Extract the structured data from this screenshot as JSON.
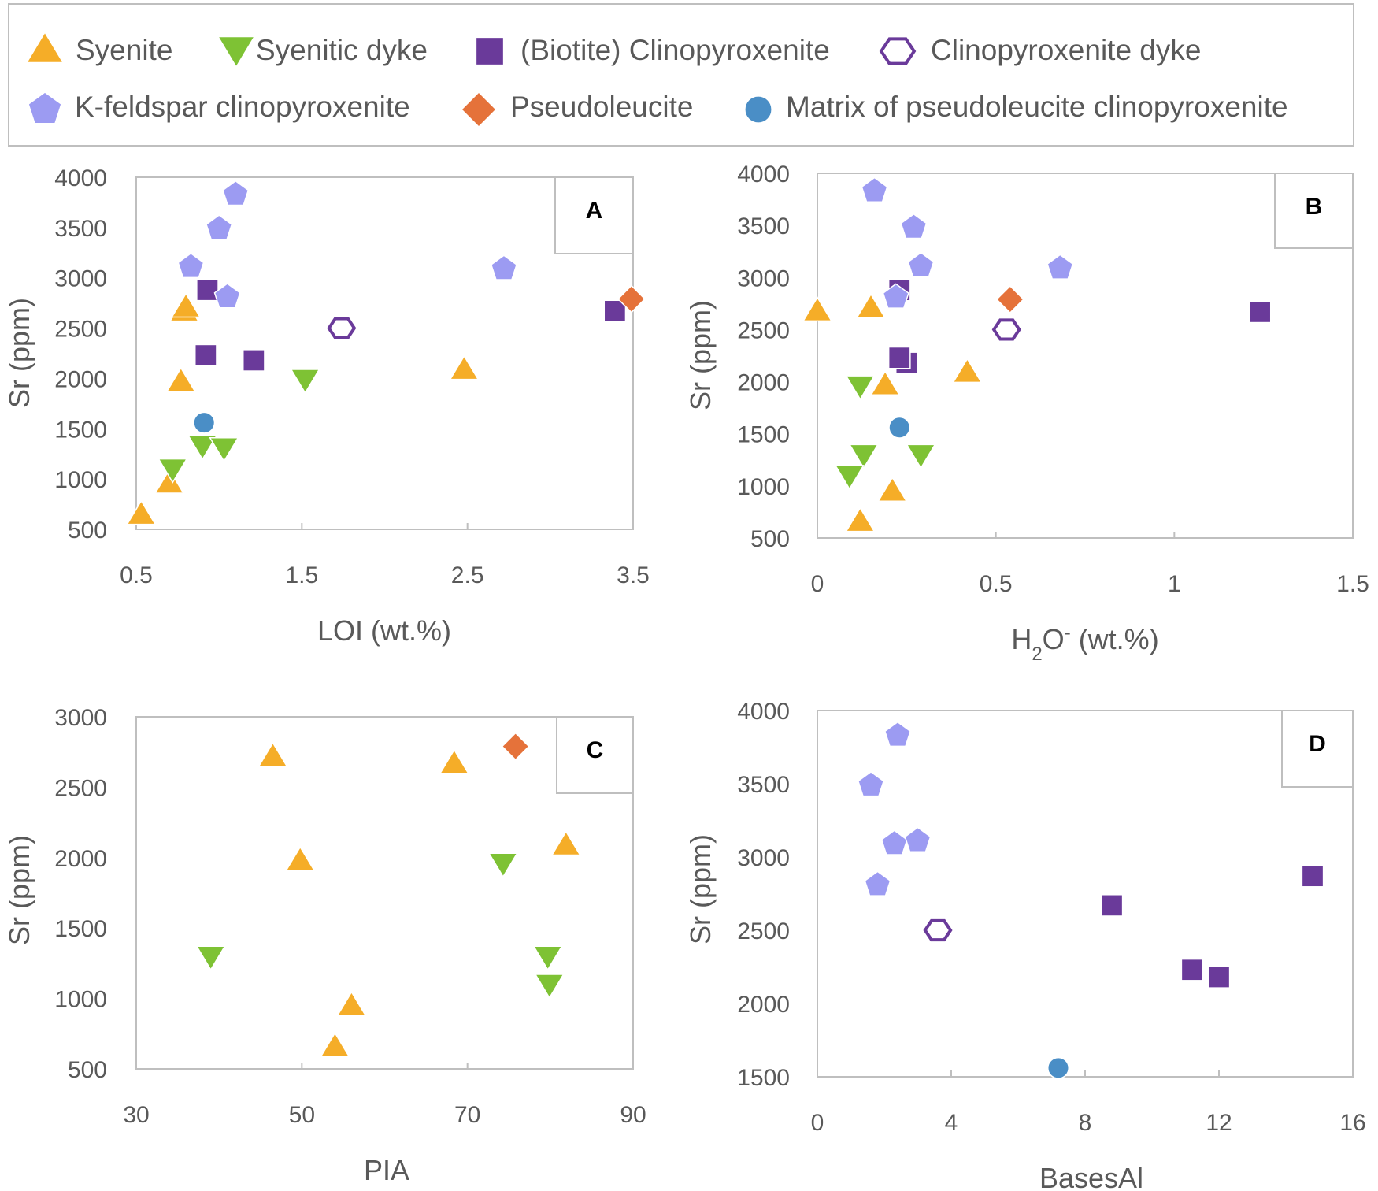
{
  "figure": {
    "background": "#ffffff"
  },
  "legend": [
    {
      "key": "syenite",
      "label": "Syenite",
      "marker": "triangle-up",
      "color": "#F5AD28",
      "filled": true
    },
    {
      "key": "dyke",
      "label": "Syenitic dyke",
      "marker": "triangle-down",
      "color": "#7EC234",
      "filled": true
    },
    {
      "key": "cpx",
      "label": "(Biotite) Clinopyroxenite",
      "marker": "square",
      "color": "#6A3A9A",
      "filled": true
    },
    {
      "key": "cpxdyke",
      "label": "Clinopyroxenite dyke",
      "marker": "hexagon",
      "color": "#6A3A9A",
      "filled": false
    },
    {
      "key": "kfsp",
      "label": "K-feldspar clinopyroxenite",
      "marker": "pentagon",
      "color": "#9C9BF2",
      "filled": true
    },
    {
      "key": "pseudo",
      "label": "Pseudoleucite",
      "marker": "diamond",
      "color": "#E5723A",
      "filled": true
    },
    {
      "key": "matrix",
      "label": "Matrix of pseudoleucite clinopyroxenite",
      "marker": "circle",
      "color": "#4A8EC6",
      "filled": true
    }
  ],
  "chart_data": [
    {
      "panel": "A",
      "type": "scatter",
      "xlabel": "LOI (wt.%)",
      "ylabel": "Sr (ppm)",
      "xlim": [
        0.5,
        3.5
      ],
      "ylim": [
        500,
        4000
      ],
      "xticks": [
        0.5,
        1.5,
        2.5,
        3.5
      ],
      "xtick_labels": [
        "0.5",
        "1.5",
        "2.5",
        "3.5"
      ],
      "yticks": [
        500,
        1000,
        1500,
        2000,
        2500,
        3000,
        3500,
        4000
      ],
      "ytick_labels": [
        "500",
        "1000",
        "1500",
        "2000",
        "2500",
        "3000",
        "3500",
        "4000"
      ],
      "series": [
        {
          "key": "syenite",
          "name": "Syenite",
          "points": [
            [
              0.53,
              650
            ],
            [
              0.7,
              960
            ],
            [
              0.77,
              1970
            ],
            [
              0.79,
              2670
            ],
            [
              0.8,
              2710
            ],
            [
              2.48,
              2090
            ]
          ]
        },
        {
          "key": "dyke",
          "name": "Syenitic dyke",
          "points": [
            [
              0.72,
              1100
            ],
            [
              0.9,
              1330
            ],
            [
              1.03,
              1310
            ],
            [
              1.52,
              1990
            ]
          ]
        },
        {
          "key": "cpx",
          "name": "(Biotite) Clinopyroxenite",
          "points": [
            [
              0.93,
              2880
            ],
            [
              0.92,
              2230
            ],
            [
              1.21,
              2180
            ],
            [
              3.39,
              2670
            ]
          ]
        },
        {
          "key": "cpxdyke",
          "name": "Clinopyroxenite dyke",
          "points": [
            [
              1.74,
              2500
            ]
          ]
        },
        {
          "key": "kfsp",
          "name": "K-feldspar clinopyroxenite",
          "points": [
            [
              0.83,
              3110
            ],
            [
              1.0,
              3490
            ],
            [
              1.1,
              3830
            ],
            [
              1.05,
              2810
            ],
            [
              2.72,
              3090
            ]
          ]
        },
        {
          "key": "pseudo",
          "name": "Pseudoleucite",
          "points": [
            [
              3.49,
              2790
            ]
          ]
        },
        {
          "key": "matrix",
          "name": "Matrix of pseudoleucite clinopyroxenite",
          "points": [
            [
              0.91,
              1560
            ]
          ]
        }
      ]
    },
    {
      "panel": "B",
      "type": "scatter",
      "xlabel_parts": [
        "H",
        "2",
        "O",
        "-",
        " (wt.%)"
      ],
      "ylabel": "Sr (ppm)",
      "xlim": [
        0,
        1.5
      ],
      "ylim": [
        500,
        4000
      ],
      "xticks": [
        0,
        0.5,
        1,
        1.5
      ],
      "xtick_labels": [
        "0",
        "0.5",
        "1",
        "1.5"
      ],
      "yticks": [
        500,
        1000,
        1500,
        2000,
        2500,
        3000,
        3500,
        4000
      ],
      "ytick_labels": [
        "500",
        "1000",
        "1500",
        "2000",
        "2500",
        "3000",
        "3500",
        "4000"
      ],
      "series": [
        {
          "key": "syenite",
          "name": "Syenite",
          "points": [
            [
              0.0,
              2680
            ],
            [
              0.15,
              2710
            ],
            [
              0.19,
              1970
            ],
            [
              0.42,
              2090
            ],
            [
              0.21,
              950
            ],
            [
              0.12,
              660
            ]
          ]
        },
        {
          "key": "dyke",
          "name": "Syenitic dyke",
          "points": [
            [
              0.12,
              1960
            ],
            [
              0.13,
              1300
            ],
            [
              0.29,
              1300
            ],
            [
              0.09,
              1100
            ]
          ]
        },
        {
          "key": "cpx",
          "name": "(Biotite) Clinopyroxenite",
          "points": [
            [
              0.23,
              2880
            ],
            [
              0.25,
              2180
            ],
            [
              0.23,
              2230
            ],
            [
              1.24,
              2670
            ]
          ]
        },
        {
          "key": "cpxdyke",
          "name": "Clinopyroxenite dyke",
          "points": [
            [
              0.53,
              2500
            ]
          ]
        },
        {
          "key": "kfsp",
          "name": "K-feldspar clinopyroxenite",
          "points": [
            [
              0.16,
              3830
            ],
            [
              0.27,
              3480
            ],
            [
              0.29,
              3110
            ],
            [
              0.22,
              2810
            ],
            [
              0.68,
              3090
            ]
          ]
        },
        {
          "key": "pseudo",
          "name": "Pseudoleucite",
          "points": [
            [
              0.54,
              2790
            ]
          ]
        },
        {
          "key": "matrix",
          "name": "Matrix of pseudoleucite clinopyroxenite",
          "points": [
            [
              0.23,
              1560
            ]
          ]
        }
      ]
    },
    {
      "panel": "C",
      "type": "scatter",
      "xlabel": "PIA",
      "ylabel": "Sr (ppm)",
      "xlim": [
        30,
        90
      ],
      "ylim": [
        500,
        3000
      ],
      "xticks": [
        30,
        50,
        70,
        90
      ],
      "xtick_labels": [
        "30",
        "50",
        "70",
        "90"
      ],
      "yticks": [
        500,
        1000,
        1500,
        2000,
        2500,
        3000
      ],
      "ytick_labels": [
        "500",
        "1000",
        "1500",
        "2000",
        "2500",
        "3000"
      ],
      "series": [
        {
          "key": "syenite",
          "name": "Syenite",
          "points": [
            [
              46.5,
              2720
            ],
            [
              49.8,
              1980
            ],
            [
              54.0,
              660
            ],
            [
              56.0,
              950
            ],
            [
              68.4,
              2670
            ],
            [
              81.9,
              2090
            ]
          ]
        },
        {
          "key": "dyke",
          "name": "Syenitic dyke",
          "points": [
            [
              39.0,
              1300
            ],
            [
              74.3,
              1960
            ],
            [
              79.7,
              1300
            ],
            [
              79.9,
              1100
            ]
          ]
        },
        {
          "key": "pseudo",
          "name": "Pseudoleucite",
          "points": [
            [
              75.8,
              2790
            ]
          ]
        }
      ]
    },
    {
      "panel": "D",
      "type": "scatter",
      "xlabel": "BasesAl",
      "ylabel": "Sr (ppm)",
      "xlim": [
        0,
        16
      ],
      "ylim": [
        1500,
        4000
      ],
      "xticks": [
        0,
        4,
        8,
        12,
        16
      ],
      "xtick_labels": [
        "0",
        "4",
        "8",
        "12",
        "16"
      ],
      "yticks": [
        1500,
        2000,
        2500,
        3000,
        3500,
        4000
      ],
      "ytick_labels": [
        "1500",
        "2000",
        "2500",
        "3000",
        "3500",
        "4000"
      ],
      "series": [
        {
          "key": "kfsp",
          "name": "K-feldspar clinopyroxenite",
          "points": [
            [
              2.4,
              3830
            ],
            [
              1.6,
              3490
            ],
            [
              2.3,
              3090
            ],
            [
              3.0,
              3110
            ],
            [
              1.8,
              2810
            ]
          ]
        },
        {
          "key": "cpxdyke",
          "name": "Clinopyroxenite dyke",
          "points": [
            [
              3.6,
              2500
            ]
          ]
        },
        {
          "key": "cpx",
          "name": "(Biotite) Clinopyroxenite",
          "points": [
            [
              8.8,
              2670
            ],
            [
              11.2,
              2230
            ],
            [
              12.0,
              2180
            ],
            [
              14.8,
              2870
            ]
          ]
        },
        {
          "key": "matrix",
          "name": "Matrix of pseudoleucite clinopyroxenite",
          "points": [
            [
              7.2,
              1560
            ]
          ]
        }
      ]
    }
  ]
}
